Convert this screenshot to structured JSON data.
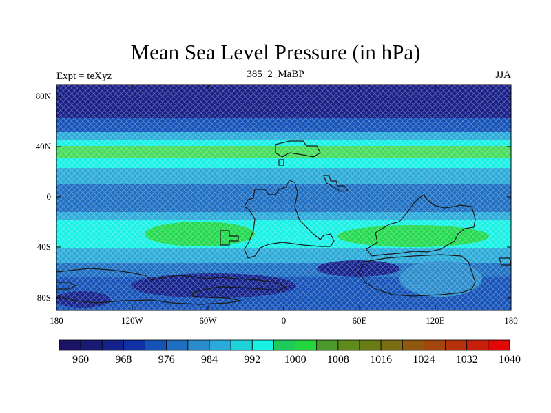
{
  "header": {
    "title": "Mean Sea Level Pressure (in hPa)",
    "left": "Expt = teXyz",
    "center": "385_2_MaBP",
    "right": "JJA"
  },
  "axes": {
    "x_ticks": [
      "180",
      "120W",
      "60W",
      "0",
      "60E",
      "120E",
      "180"
    ],
    "y_ticks": [
      "80N",
      "40N",
      "0",
      "40S",
      "80S"
    ]
  },
  "colorbar": {
    "labels": [
      "960",
      "968",
      "976",
      "984",
      "992",
      "1000",
      "1008",
      "1016",
      "1024",
      "1032",
      "1040"
    ],
    "colors": [
      "#1b1464",
      "#181b73",
      "#15228b",
      "#1031a6",
      "#1552b8",
      "#1e6fc2",
      "#2a8ccc",
      "#2aaad8",
      "#1fd1d8",
      "#18f1e6",
      "#1ecb5a",
      "#24d63d",
      "#4b9a2a",
      "#5f8a1c",
      "#6a7a14",
      "#7a6d12",
      "#8f5a0f",
      "#a2460d",
      "#b5320b",
      "#c81f0a",
      "#e30808"
    ],
    "levels": [
      956,
      960,
      964,
      968,
      972,
      976,
      980,
      984,
      988,
      992,
      996,
      1000,
      1004,
      1008,
      1012,
      1016,
      1020,
      1024,
      1028,
      1032,
      1036,
      1040,
      1044
    ]
  },
  "map_style": {
    "land_outline_color": "#1a1a1a",
    "hatch": "cross-hatch"
  }
}
